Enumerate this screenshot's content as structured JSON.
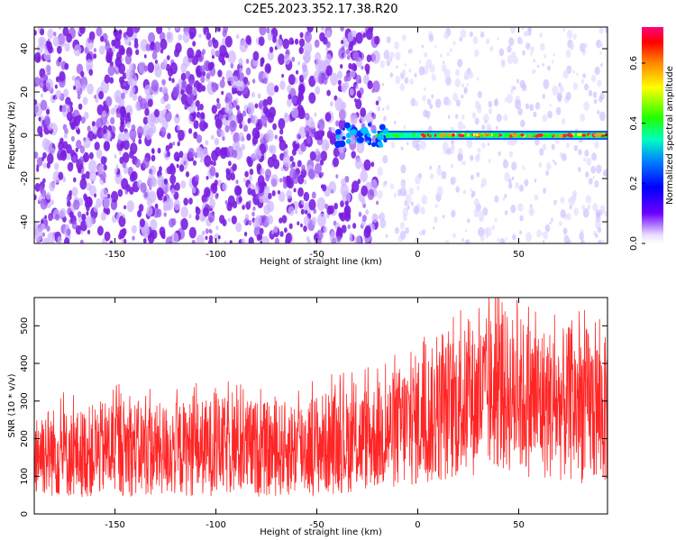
{
  "title": "C2E5.2023.352.17.38.R20",
  "colors": {
    "snr_line": "#ff0000",
    "spectrogram_low": "#d8c8ff",
    "spectrogram_mid": "#7a1fe0",
    "spectrogram_line": "#00c0ff"
  },
  "chart_data": [
    {
      "type": "heatmap",
      "title": "C2E5.2023.352.17.38.R20",
      "xlabel": "Height of straight line (km)",
      "ylabel": "Frequency (Hz)",
      "xlim": [
        -190,
        94
      ],
      "ylim": [
        -50,
        50
      ],
      "xticks": [
        -150,
        -100,
        -50,
        0,
        50
      ],
      "yticks": [
        -40,
        -20,
        0,
        20,
        40
      ],
      "colorbar": {
        "label": "Normalized spectral amplitude",
        "range": [
          0.0,
          0.72
        ],
        "ticks": [
          0.0,
          0.2,
          0.4,
          0.6
        ]
      },
      "features": {
        "broadband_noise_heights_km": [
          -190,
          -20
        ],
        "narrowband_line_frequency_hz": 0,
        "narrowband_line_heights_km": [
          -30,
          94
        ],
        "peak_amplitude_heights_km": [
          0,
          94
        ]
      }
    },
    {
      "type": "line",
      "xlabel": "Height of straight line (km)",
      "ylabel": "SNR (10 * v/v)",
      "xlim": [
        -190,
        94
      ],
      "ylim": [
        0,
        575
      ],
      "xticks": [
        -150,
        -100,
        -50,
        0,
        50
      ],
      "yticks": [
        0,
        100,
        200,
        300,
        400,
        500
      ],
      "x": [
        -190,
        -170,
        -150,
        -130,
        -110,
        -90,
        -70,
        -50,
        -30,
        -20,
        -10,
        0,
        10,
        20,
        30,
        40,
        50,
        60,
        70,
        80,
        94
      ],
      "y_low": [
        40,
        35,
        40,
        38,
        40,
        40,
        38,
        40,
        50,
        55,
        55,
        60,
        70,
        80,
        90,
        100,
        90,
        80,
        75,
        70,
        60
      ],
      "y_high": [
        300,
        280,
        320,
        300,
        310,
        320,
        300,
        330,
        340,
        360,
        400,
        440,
        460,
        500,
        520,
        560,
        540,
        520,
        500,
        520,
        480
      ]
    }
  ]
}
